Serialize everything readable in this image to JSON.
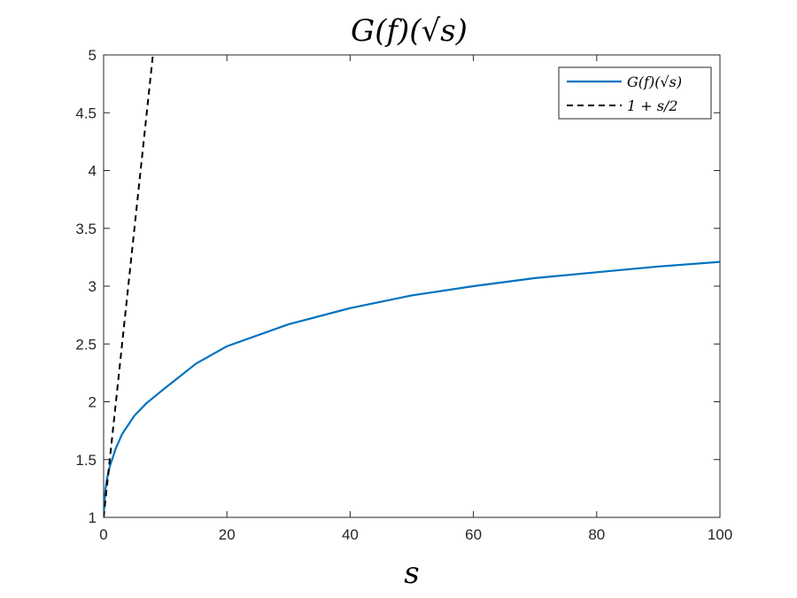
{
  "chart_data": {
    "type": "line",
    "title": "G(f)(√s)",
    "xlabel": "s",
    "ylabel": "",
    "xlim": [
      0,
      100
    ],
    "ylim": [
      1,
      5
    ],
    "x_ticks": [
      0,
      20,
      40,
      60,
      80,
      100
    ],
    "y_ticks": [
      1,
      1.5,
      2,
      2.5,
      3,
      3.5,
      4,
      4.5,
      5
    ],
    "x_tick_labels": [
      "0",
      "20",
      "40",
      "60",
      "80",
      "100"
    ],
    "y_tick_labels": [
      "1",
      "1.5",
      "2",
      "2.5",
      "3",
      "3.5",
      "4",
      "4.5",
      "5"
    ],
    "grid": false,
    "legend_position": "top-right",
    "series": [
      {
        "name": "G(f)(√s)",
        "style": "solid",
        "color": "#0072BD",
        "x": [
          0,
          0.25,
          0.5,
          1,
          2,
          3,
          5,
          7,
          10,
          15,
          20,
          30,
          40,
          50,
          60,
          70,
          80,
          90,
          100
        ],
        "y": [
          1.0,
          1.22,
          1.32,
          1.44,
          1.6,
          1.72,
          1.88,
          1.99,
          2.12,
          2.33,
          2.48,
          2.67,
          2.81,
          2.92,
          3.0,
          3.07,
          3.12,
          3.17,
          3.21
        ]
      },
      {
        "name": "1 + s/2",
        "style": "dashed",
        "color": "#000000",
        "x": [
          0,
          8
        ],
        "y": [
          1,
          5
        ]
      }
    ]
  }
}
